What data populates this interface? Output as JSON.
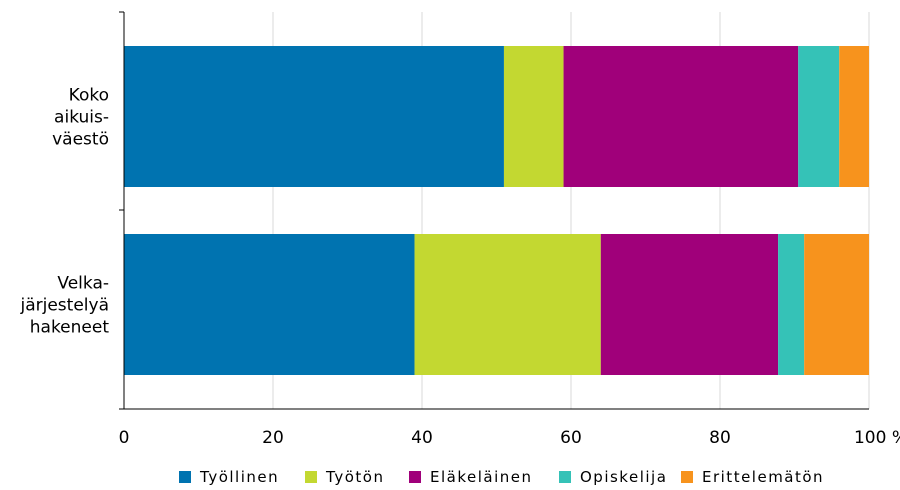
{
  "chart_data": {
    "type": "bar",
    "orientation": "horizontal",
    "stacked": true,
    "categories": [
      [
        "Koko",
        "aikuis-",
        "väestö"
      ],
      [
        "Velka-",
        "järjestelyä",
        "hakeneet"
      ]
    ],
    "series": [
      {
        "name": "Työllinen",
        "color": "#0073b0",
        "values": [
          51.0,
          39.0
        ]
      },
      {
        "name": "Työtön",
        "color": "#c3d831",
        "values": [
          8.0,
          25.0
        ]
      },
      {
        "name": "Eläkeläinen",
        "color": "#a0007a",
        "values": [
          31.5,
          23.8
        ]
      },
      {
        "name": "Opiskelija",
        "color": "#35c2b7",
        "values": [
          5.5,
          3.5
        ]
      },
      {
        "name": "Erittelemätön",
        "color": "#f7931d",
        "values": [
          4.0,
          8.7
        ]
      }
    ],
    "x_ticks": [
      "0",
      "20",
      "40",
      "60",
      "80",
      "100 %"
    ],
    "xlim": [
      0,
      100
    ],
    "grid": true,
    "legend_position": "bottom"
  }
}
